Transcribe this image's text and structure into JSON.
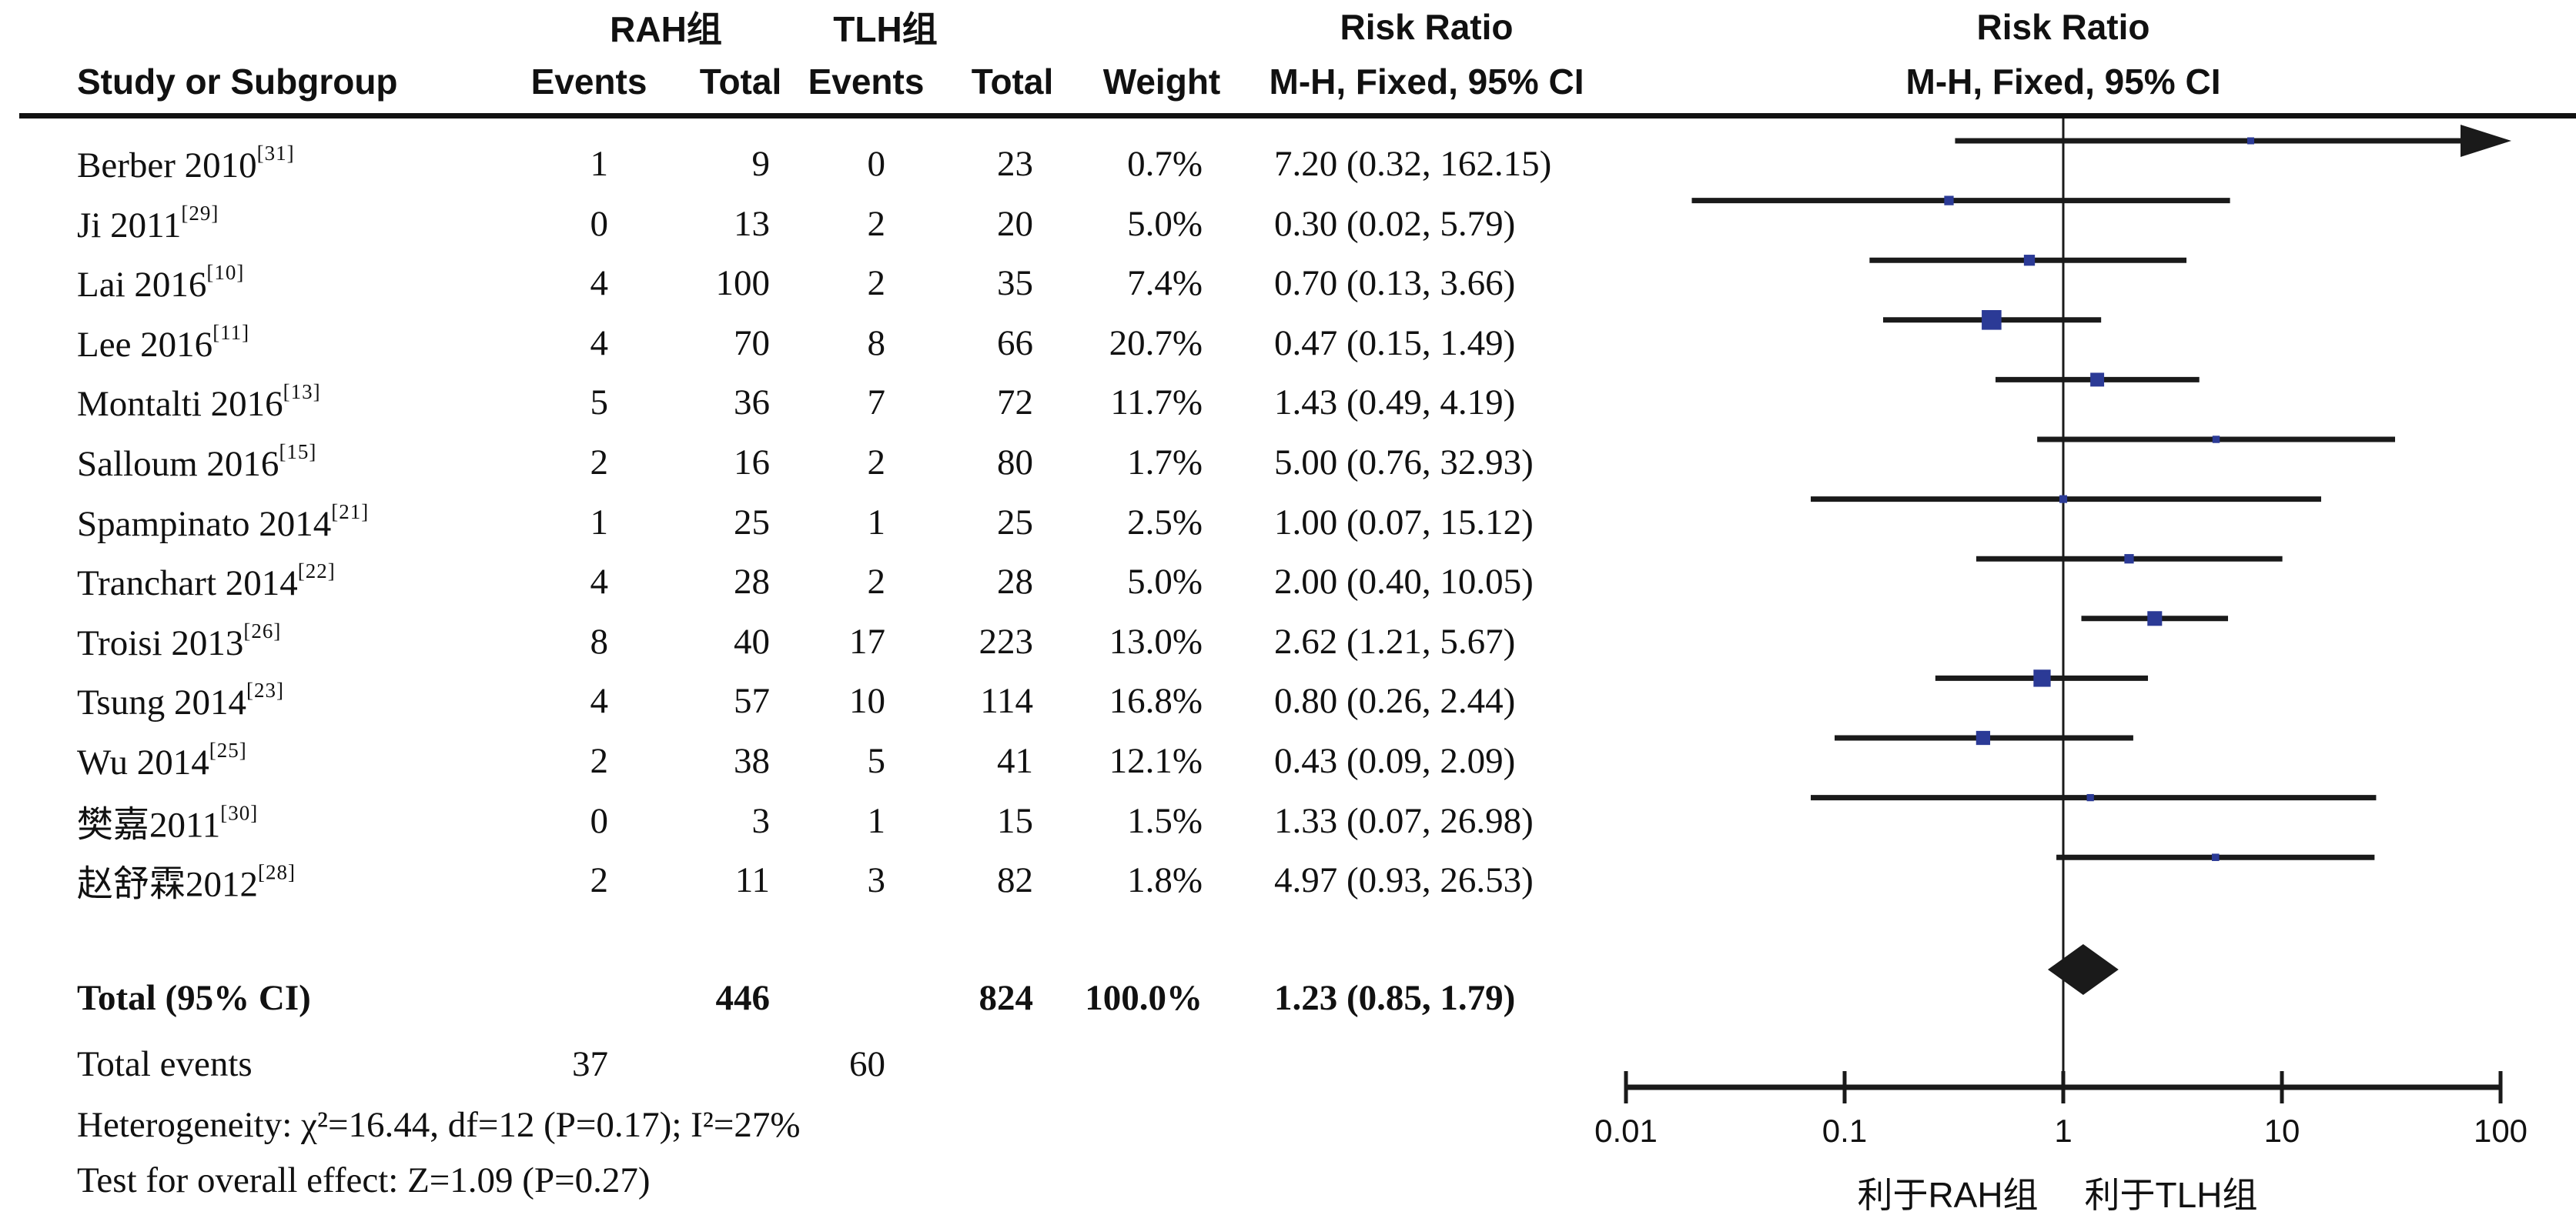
{
  "header": {
    "group_rah": "RAH组",
    "group_tlh": "TLH组",
    "study_col": "Study or Subgroup",
    "events_col": "Events",
    "total_col": "Total",
    "weight_col": "Weight",
    "risk_ratio": "Risk Ratio",
    "method_ci": "M-H, Fixed, 95% CI"
  },
  "footnotes": {
    "heterogeneity": "Heterogeneity: χ²=16.44, df=12 (P=0.17); I²=27%",
    "overall_effect": "Test for overall effect: Z=1.09 (P=0.27)"
  },
  "axis": {
    "tick_labels": [
      "0.01",
      "0.1",
      "1",
      "10",
      "100"
    ]
  },
  "colors": {
    "marker": "#2b3a96",
    "line": "#1a1a1a",
    "diamond": "#1a1a1a"
  },
  "chart_data": {
    "type": "scatter",
    "subtype": "forest-plot",
    "effect_label": "Risk Ratio, M-H, Fixed, 95% CI",
    "x_scale": "log",
    "x_range": [
      0.01,
      100
    ],
    "x_ticks": [
      0.01,
      0.1,
      1,
      10,
      100
    ],
    "x_tick_labels": [
      "0.01",
      "0.1",
      "1",
      "10",
      "100"
    ],
    "favors_left": "利于RAH组",
    "favors_right": "利于TLH组",
    "studies": [
      {
        "name": "Berber 2010",
        "ref": "[31]",
        "events_rah": "1",
        "total_rah": "9",
        "events_tlh": "0",
        "total_tlh": "23",
        "weight": "0.7%",
        "weight_pct": 0.7,
        "rr": 7.2,
        "ci_low": 0.32,
        "ci_high": 162.15,
        "rr_ci_text": "7.20 (0.32, 162.15)"
      },
      {
        "name": "Ji 2011",
        "ref": "[29]",
        "events_rah": "0",
        "total_rah": "13",
        "events_tlh": "2",
        "total_tlh": "20",
        "weight": "5.0%",
        "weight_pct": 5.0,
        "rr": 0.3,
        "ci_low": 0.02,
        "ci_high": 5.79,
        "rr_ci_text": "0.30 (0.02, 5.79)"
      },
      {
        "name": "Lai 2016",
        "ref": "[10]",
        "events_rah": "4",
        "total_rah": "100",
        "events_tlh": "2",
        "total_tlh": "35",
        "weight": "7.4%",
        "weight_pct": 7.4,
        "rr": 0.7,
        "ci_low": 0.13,
        "ci_high": 3.66,
        "rr_ci_text": "0.70 (0.13, 3.66)"
      },
      {
        "name": "Lee 2016",
        "ref": "[11]",
        "events_rah": "4",
        "total_rah": "70",
        "events_tlh": "8",
        "total_tlh": "66",
        "weight": "20.7%",
        "weight_pct": 20.7,
        "rr": 0.47,
        "ci_low": 0.15,
        "ci_high": 1.49,
        "rr_ci_text": "0.47 (0.15, 1.49)"
      },
      {
        "name": "Montalti 2016",
        "ref": "[13]",
        "events_rah": "5",
        "total_rah": "36",
        "events_tlh": "7",
        "total_tlh": "72",
        "weight": "11.7%",
        "weight_pct": 11.7,
        "rr": 1.43,
        "ci_low": 0.49,
        "ci_high": 4.19,
        "rr_ci_text": "1.43 (0.49, 4.19)"
      },
      {
        "name": "Salloum 2016",
        "ref": "[15]",
        "events_rah": "2",
        "total_rah": "16",
        "events_tlh": "2",
        "total_tlh": "80",
        "weight": "1.7%",
        "weight_pct": 1.7,
        "rr": 5.0,
        "ci_low": 0.76,
        "ci_high": 32.93,
        "rr_ci_text": "5.00 (0.76, 32.93)"
      },
      {
        "name": "Spampinato 2014",
        "ref": "[21]",
        "events_rah": "1",
        "total_rah": "25",
        "events_tlh": "1",
        "total_tlh": "25",
        "weight": "2.5%",
        "weight_pct": 2.5,
        "rr": 1.0,
        "ci_low": 0.07,
        "ci_high": 15.12,
        "rr_ci_text": "1.00 (0.07, 15.12)"
      },
      {
        "name": "Tranchart 2014",
        "ref": "[22]",
        "events_rah": "4",
        "total_rah": "28",
        "events_tlh": "2",
        "total_tlh": "28",
        "weight": "5.0%",
        "weight_pct": 5.0,
        "rr": 2.0,
        "ci_low": 0.4,
        "ci_high": 10.05,
        "rr_ci_text": "2.00 (0.40, 10.05)"
      },
      {
        "name": "Troisi 2013",
        "ref": "[26]",
        "events_rah": "8",
        "total_rah": "40",
        "events_tlh": "17",
        "total_tlh": "223",
        "weight": "13.0%",
        "weight_pct": 13.0,
        "rr": 2.62,
        "ci_low": 1.21,
        "ci_high": 5.67,
        "rr_ci_text": "2.62 (1.21, 5.67)"
      },
      {
        "name": "Tsung 2014",
        "ref": "[23]",
        "events_rah": "4",
        "total_rah": "57",
        "events_tlh": "10",
        "total_tlh": "114",
        "weight": "16.8%",
        "weight_pct": 16.8,
        "rr": 0.8,
        "ci_low": 0.26,
        "ci_high": 2.44,
        "rr_ci_text": "0.80 (0.26, 2.44)"
      },
      {
        "name": "Wu 2014",
        "ref": "[25]",
        "events_rah": "2",
        "total_rah": "38",
        "events_tlh": "5",
        "total_tlh": "41",
        "weight": "12.1%",
        "weight_pct": 12.1,
        "rr": 0.43,
        "ci_low": 0.09,
        "ci_high": 2.09,
        "rr_ci_text": "0.43 (0.09, 2.09)"
      },
      {
        "name": "樊嘉2011",
        "ref": "[30]",
        "events_rah": "0",
        "total_rah": "3",
        "events_tlh": "1",
        "total_tlh": "15",
        "weight": "1.5%",
        "weight_pct": 1.5,
        "rr": 1.33,
        "ci_low": 0.07,
        "ci_high": 26.98,
        "rr_ci_text": "1.33 (0.07, 26.98)"
      },
      {
        "name": "赵舒霖2012",
        "ref": "[28]",
        "events_rah": "2",
        "total_rah": "11",
        "events_tlh": "3",
        "total_tlh": "82",
        "weight": "1.8%",
        "weight_pct": 1.8,
        "rr": 4.97,
        "ci_low": 0.93,
        "ci_high": 26.53,
        "rr_ci_text": "4.97 (0.93, 26.53)"
      }
    ],
    "total": {
      "label": "Total (95% CI)",
      "total_rah": "446",
      "total_tlh": "824",
      "weight": "100.0%",
      "weight_pct": 100.0,
      "rr": 1.23,
      "ci_low": 0.85,
      "ci_high": 1.79,
      "rr_ci_text": "1.23 (0.85, 1.79)",
      "events_label": "Total events",
      "events_rah": "37",
      "events_tlh": "60"
    }
  }
}
